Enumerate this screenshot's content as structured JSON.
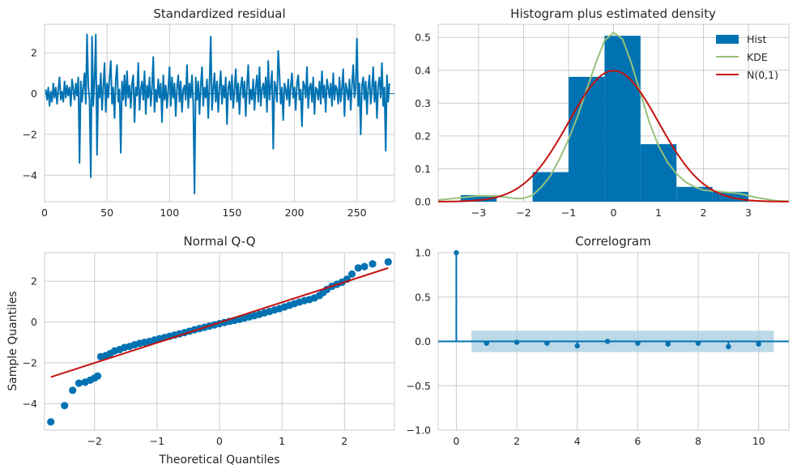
{
  "chart_data": [
    {
      "type": "line",
      "title": "Standardized residual",
      "xlabel": "",
      "ylabel": "",
      "xlim": [
        0,
        280
      ],
      "ylim": [
        -5.3,
        3.4
      ],
      "xticks": [
        0,
        50,
        100,
        150,
        200,
        250
      ],
      "yticks": [
        2,
        0,
        -2,
        -4
      ],
      "grid": true,
      "color": "#0072b2",
      "hline": 0,
      "x_start": 1,
      "values": [
        0.2,
        -0.3,
        0.3,
        -0.6,
        0.1,
        -0.4,
        0.5,
        -0.2,
        0.3,
        -0.5,
        0.2,
        0.8,
        -0.3,
        0.1,
        -0.4,
        0.6,
        -0.2,
        0.4,
        -0.1,
        0.3,
        -0.6,
        0.7,
        0.2,
        -0.3,
        0.5,
        -0.1,
        0.8,
        -3.4,
        0.6,
        -0.4,
        0.3,
        1.0,
        -0.5,
        2.9,
        0.4,
        -0.3,
        -4.1,
        2.8,
        -0.6,
        0.7,
        2.9,
        -3.0,
        0.4,
        -0.2,
        1.0,
        -0.8,
        0.3,
        1.5,
        -0.9,
        0.5,
        -0.2,
        0.8,
        1.6,
        -0.5,
        0.3,
        -1.2,
        0.7,
        1.4,
        -0.4,
        0.2,
        -2.9,
        0.6,
        -0.3,
        0.9,
        -0.6,
        1.1,
        -0.2,
        0.4,
        -0.7,
        0.5,
        0.9,
        -1.4,
        0.3,
        -0.1,
        1.5,
        -0.8,
        0.2,
        0.6,
        -0.3,
        1.1,
        -1.0,
        0.4,
        -0.2,
        0.8,
        -0.6,
        0.3,
        1.8,
        -0.9,
        0.2,
        -0.4,
        0.7,
        -0.2,
        0.5,
        -1.4,
        0.9,
        -0.3,
        0.4,
        -0.7,
        0.2,
        1.3,
        -0.6,
        0.8,
        -0.2,
        0.5,
        -1.1,
        0.3,
        0.9,
        -0.4,
        0.6,
        -0.9,
        0.2,
        0.4,
        -0.3,
        1.4,
        -0.7,
        0.5,
        -0.2,
        0.9,
        -0.5,
        -4.9,
        0.8,
        -0.3,
        0.6,
        -1.0,
        0.4,
        1.3,
        -0.6,
        0.3,
        -0.2,
        0.7,
        -1.2,
        0.5,
        2.8,
        -0.8,
        0.2,
        1.0,
        -0.4,
        0.6,
        -0.9,
        0.3,
        1.1,
        -0.5,
        0.4,
        -0.2,
        0.8,
        -1.5,
        0.3,
        0.6,
        -0.3,
        0.9,
        -0.7,
        0.2,
        1.2,
        -0.4,
        0.5,
        -1.0,
        0.3,
        0.8,
        -0.2,
        0.6,
        -1.1,
        0.4,
        1.4,
        -0.5,
        0.2,
        -0.3,
        0.7,
        -0.8,
        0.3,
        0.9,
        -0.4,
        1.3,
        -0.6,
        0.2,
        0.5,
        -0.2,
        0.8,
        -0.9,
        1.6,
        -0.3,
        0.4,
        1.1,
        -2.7,
        0.6,
        0.3,
        -0.4,
        2.1,
        0.9,
        -0.5,
        0.3,
        -1.3,
        0.5,
        0.2,
        -0.3,
        0.7,
        -0.6,
        0.4,
        1.0,
        -0.2,
        0.3,
        -0.8,
        0.5,
        0.9,
        -0.3,
        0.2,
        -1.6,
        0.6,
        0.4,
        -0.2,
        1.3,
        -0.7,
        0.3,
        0.5,
        -0.4,
        0.8,
        -1.0,
        0.3,
        0.2,
        -0.3,
        0.6,
        -0.5,
        1.1,
        -0.2,
        0.4,
        -0.9,
        0.7,
        0.3,
        -0.2,
        0.5,
        -0.6,
        1.0,
        -0.3,
        0.4,
        0.2,
        -0.5,
        0.8,
        -0.4,
        0.3,
        1.2,
        -1.1,
        0.5,
        0.2,
        -0.3,
        0.7,
        -0.8,
        0.4,
        1.4,
        -0.2,
        0.3,
        2.7,
        -0.6,
        0.5,
        -2.0,
        0.4,
        0.8,
        -0.3,
        0.6,
        -1.0,
        0.3,
        0.9,
        -0.5,
        0.2,
        1.3,
        -0.4,
        0.6,
        -1.2,
        0.4,
        0.8,
        -0.2,
        1.5,
        -0.6,
        0.3,
        -2.8,
        0.9,
        -0.4,
        0.5
      ]
    },
    {
      "type": "bar",
      "title": "Histogram plus estimated density",
      "xlim": [
        -3.9,
        3.9
      ],
      "ylim": [
        0,
        0.54
      ],
      "xticks": [
        -3,
        -2,
        -1,
        0,
        1,
        2,
        3
      ],
      "yticks": [
        0.0,
        0.1,
        0.2,
        0.3,
        0.4,
        0.5
      ],
      "grid": true,
      "legend_position": "top-right",
      "histogram": {
        "name": "Hist",
        "color": "#0072b2",
        "bins": [
          -3.4,
          -2.6,
          -1.8,
          -1.0,
          -0.2,
          0.6,
          1.4,
          2.2,
          3.0
        ],
        "values": [
          0.02,
          0.0,
          0.09,
          0.38,
          0.505,
          0.175,
          0.045,
          0.03
        ]
      },
      "series": [
        {
          "name": "KDE",
          "color": "#97c17c",
          "x": [
            -3.9,
            -3.4,
            -3.0,
            -2.6,
            -2.2,
            -2.0,
            -1.8,
            -1.6,
            -1.4,
            -1.2,
            -1.0,
            -0.8,
            -0.6,
            -0.4,
            -0.2,
            0.0,
            0.2,
            0.4,
            0.6,
            0.8,
            1.0,
            1.2,
            1.4,
            1.6,
            1.8,
            2.0,
            2.4,
            2.8,
            3.2,
            3.6,
            3.9
          ],
          "y": [
            0.005,
            0.012,
            0.018,
            0.017,
            0.01,
            0.01,
            0.02,
            0.045,
            0.08,
            0.13,
            0.19,
            0.26,
            0.34,
            0.42,
            0.49,
            0.515,
            0.495,
            0.42,
            0.33,
            0.24,
            0.17,
            0.12,
            0.085,
            0.06,
            0.045,
            0.035,
            0.03,
            0.025,
            0.012,
            0.003,
            0.001
          ]
        },
        {
          "name": "N(0,1)",
          "color": "#c4120f",
          "function": "standard-normal-pdf"
        }
      ]
    },
    {
      "type": "scatter",
      "title": "Normal Q-Q",
      "xlabel": "Theoretical Quantiles",
      "ylabel": "Sample Quantiles",
      "xlim": [
        -2.8,
        2.8
      ],
      "ylim": [
        -5.3,
        3.4
      ],
      "xticks": [
        -2,
        -1,
        0,
        1,
        2
      ],
      "yticks": [
        2,
        0,
        -2,
        -4
      ],
      "grid": true,
      "points_color": "#0072b2",
      "line_color": "#c4120f",
      "line": {
        "x": [
          -2.7,
          2.7
        ],
        "y": [
          -2.7,
          2.65
        ]
      },
      "points": [
        [
          -2.7,
          -4.9
        ],
        [
          -2.48,
          -4.1
        ],
        [
          -2.35,
          -3.35
        ],
        [
          -2.25,
          -3.0
        ],
        [
          -2.15,
          -2.95
        ],
        [
          -2.07,
          -2.85
        ],
        [
          -2.0,
          -2.75
        ],
        [
          -1.95,
          -2.65
        ],
        [
          -1.9,
          -1.7
        ],
        [
          -1.82,
          -1.65
        ],
        [
          -1.75,
          -1.55
        ],
        [
          -1.68,
          -1.42
        ],
        [
          -1.6,
          -1.35
        ],
        [
          -1.52,
          -1.25
        ],
        [
          -1.44,
          -1.2
        ],
        [
          -1.36,
          -1.12
        ],
        [
          -1.28,
          -1.05
        ],
        [
          -1.2,
          -1.0
        ],
        [
          -1.12,
          -0.95
        ],
        [
          -1.04,
          -0.88
        ],
        [
          -0.96,
          -0.82
        ],
        [
          -0.88,
          -0.76
        ],
        [
          -0.8,
          -0.7
        ],
        [
          -0.72,
          -0.64
        ],
        [
          -0.64,
          -0.58
        ],
        [
          -0.56,
          -0.52
        ],
        [
          -0.48,
          -0.45
        ],
        [
          -0.4,
          -0.38
        ],
        [
          -0.32,
          -0.32
        ],
        [
          -0.24,
          -0.26
        ],
        [
          -0.16,
          -0.2
        ],
        [
          -0.08,
          -0.14
        ],
        [
          0.0,
          -0.08
        ],
        [
          0.08,
          -0.02
        ],
        [
          0.16,
          0.03
        ],
        [
          0.24,
          0.08
        ],
        [
          0.32,
          0.13
        ],
        [
          0.4,
          0.19
        ],
        [
          0.48,
          0.25
        ],
        [
          0.56,
          0.31
        ],
        [
          0.64,
          0.38
        ],
        [
          0.72,
          0.45
        ],
        [
          0.8,
          0.52
        ],
        [
          0.88,
          0.59
        ],
        [
          0.96,
          0.66
        ],
        [
          1.04,
          0.74
        ],
        [
          1.12,
          0.82
        ],
        [
          1.2,
          0.9
        ],
        [
          1.28,
          0.98
        ],
        [
          1.36,
          1.05
        ],
        [
          1.44,
          1.1
        ],
        [
          1.52,
          1.18
        ],
        [
          1.6,
          1.3
        ],
        [
          1.66,
          1.45
        ],
        [
          1.72,
          1.6
        ],
        [
          1.8,
          1.75
        ],
        [
          1.88,
          1.85
        ],
        [
          1.96,
          1.95
        ],
        [
          2.04,
          2.1
        ],
        [
          2.12,
          2.35
        ],
        [
          2.22,
          2.65
        ],
        [
          2.32,
          2.72
        ],
        [
          2.45,
          2.85
        ],
        [
          2.7,
          2.95
        ]
      ]
    },
    {
      "type": "stem",
      "title": "Correlogram",
      "xlim": [
        -0.6,
        11.0
      ],
      "ylim": [
        -1.0,
        1.0
      ],
      "xticks": [
        0,
        2,
        4,
        6,
        8,
        10
      ],
      "yticks": [
        1.0,
        0.5,
        0.0,
        -0.5,
        -1.0
      ],
      "grid": true,
      "color": "#0072b2",
      "confidence_band": {
        "x": [
          0.5,
          10.5
        ],
        "lower": -0.12,
        "upper": 0.12,
        "color": "#a6cce0"
      },
      "lags": [
        0,
        1,
        2,
        3,
        4,
        5,
        6,
        7,
        8,
        9,
        10
      ],
      "values": [
        1.0,
        -0.02,
        -0.01,
        -0.02,
        -0.05,
        0.0,
        -0.02,
        -0.03,
        -0.02,
        -0.06,
        -0.03
      ]
    }
  ]
}
